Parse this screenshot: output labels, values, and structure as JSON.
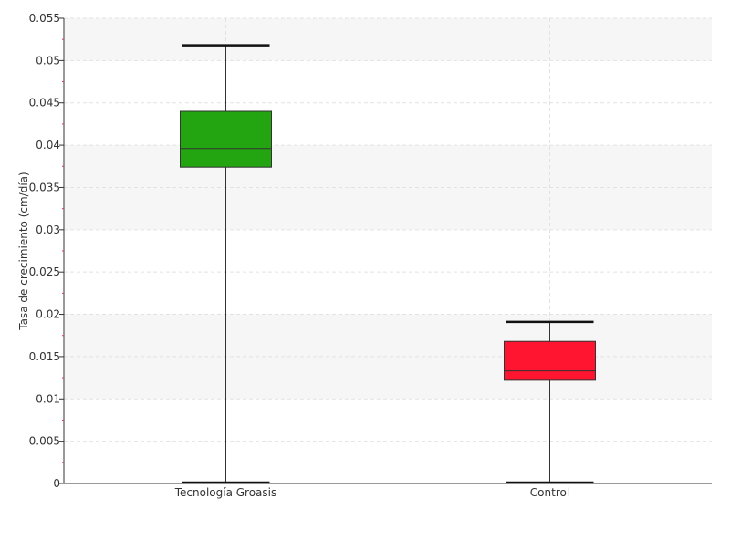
{
  "chart_data": {
    "type": "box",
    "title": "",
    "xlabel": "",
    "ylabel": "Tasa de crecimiento (cm/día)",
    "ylim": [
      0,
      0.055
    ],
    "yticks": [
      "0",
      "0.005",
      "0.01",
      "0.015",
      "0.02",
      "0.025",
      "0.03",
      "0.035",
      "0.04",
      "0.045",
      "0.05",
      "0.055"
    ],
    "grid": true,
    "categories": [
      "Tecnología Groasis",
      "Control"
    ],
    "boxes": [
      {
        "category": "Tecnología Groasis",
        "min": 0.0,
        "q1": 0.0374,
        "median": 0.0396,
        "q3": 0.044,
        "max": 0.0518,
        "color": "#22a511"
      },
      {
        "category": "Control",
        "min": 0.0,
        "q1": 0.0122,
        "median": 0.0133,
        "q3": 0.0168,
        "max": 0.0191,
        "color": "#ff1530"
      }
    ]
  }
}
